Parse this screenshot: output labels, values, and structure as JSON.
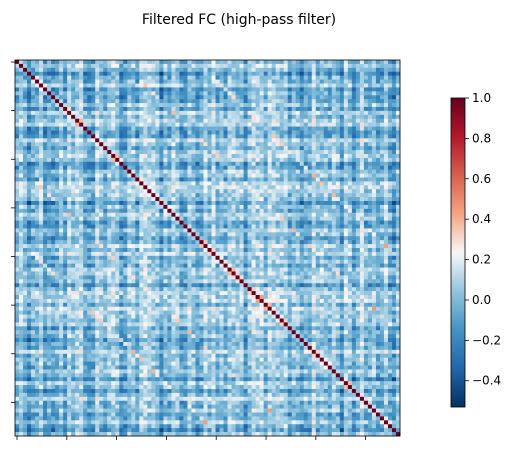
{
  "chart_data": {
    "type": "heatmap",
    "title": "Filtered FC (high-pass filter)",
    "xlabel": "",
    "ylabel": "",
    "matrix": {
      "description_type": "correlation matrix",
      "diagonal_value": 1.0,
      "off_diagonal_typical_range": [
        -0.5,
        0.3
      ],
      "x_tick_count": 8,
      "y_tick_count": 8,
      "x_tick_labels_visible": false,
      "y_tick_labels_visible": false
    },
    "colorbar": {
      "colormap": "RdBu_r",
      "vmin": -0.53,
      "vmax": 1.0,
      "ticks": [
        -0.4,
        -0.2,
        0.0,
        0.2,
        0.4,
        0.6,
        0.8,
        1.0
      ],
      "tick_labels": [
        "−0.4",
        "−0.2",
        "0.0",
        "0.2",
        "0.4",
        "0.6",
        "0.8",
        "1.0"
      ]
    },
    "grid": false
  }
}
